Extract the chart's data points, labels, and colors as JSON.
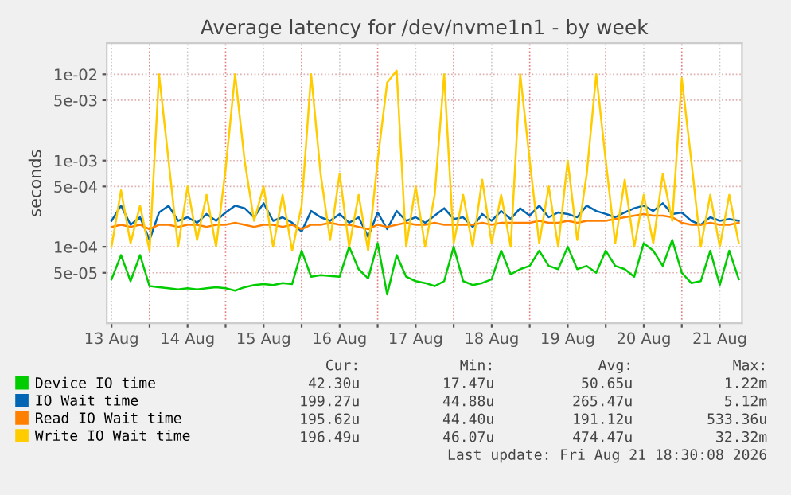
{
  "chart_data": {
    "type": "line",
    "title": "Average latency for /dev/nvme1n1 - by week",
    "ylabel": "seconds",
    "x": [
      "2026-08-13T12:00",
      "2026-08-13T15:00",
      "2026-08-13T18:00",
      "2026-08-13T21:00",
      "2026-08-14T00:00",
      "2026-08-14T03:00",
      "2026-08-14T06:00",
      "2026-08-14T09:00",
      "2026-08-14T12:00",
      "2026-08-14T15:00",
      "2026-08-14T18:00",
      "2026-08-14T21:00",
      "2026-08-15T00:00",
      "2026-08-15T03:00",
      "2026-08-15T06:00",
      "2026-08-15T09:00",
      "2026-08-15T12:00",
      "2026-08-15T15:00",
      "2026-08-15T18:00",
      "2026-08-15T21:00",
      "2026-08-16T00:00",
      "2026-08-16T03:00",
      "2026-08-16T06:00",
      "2026-08-16T09:00",
      "2026-08-16T12:00",
      "2026-08-16T15:00",
      "2026-08-16T18:00",
      "2026-08-16T21:00",
      "2026-08-17T00:00",
      "2026-08-17T03:00",
      "2026-08-17T06:00",
      "2026-08-17T09:00",
      "2026-08-17T12:00",
      "2026-08-17T15:00",
      "2026-08-17T18:00",
      "2026-08-17T21:00",
      "2026-08-18T00:00",
      "2026-08-18T03:00",
      "2026-08-18T06:00",
      "2026-08-18T09:00",
      "2026-08-18T12:00",
      "2026-08-18T15:00",
      "2026-08-18T18:00",
      "2026-08-18T21:00",
      "2026-08-19T00:00",
      "2026-08-19T03:00",
      "2026-08-19T06:00",
      "2026-08-19T09:00",
      "2026-08-19T12:00",
      "2026-08-19T15:00",
      "2026-08-19T18:00",
      "2026-08-19T21:00",
      "2026-08-20T00:00",
      "2026-08-20T03:00",
      "2026-08-20T06:00",
      "2026-08-20T09:00",
      "2026-08-20T12:00",
      "2026-08-20T15:00",
      "2026-08-20T18:00",
      "2026-08-20T21:00",
      "2026-08-21T00:00",
      "2026-08-21T03:00",
      "2026-08-21T06:00",
      "2026-08-21T09:00",
      "2026-08-21T12:00",
      "2026-08-21T15:00",
      "2026-08-21T18:00"
    ],
    "series": [
      {
        "name": "Device IO time",
        "color": "#00cc00",
        "values": [
          4.2e-05,
          8e-05,
          4e-05,
          8e-05,
          3.5e-05,
          3.4e-05,
          3.3e-05,
          3.2e-05,
          3.3e-05,
          3.2e-05,
          3.3e-05,
          3.4e-05,
          3.3e-05,
          3.1e-05,
          3.4e-05,
          3.6e-05,
          3.7e-05,
          3.6e-05,
          3.8e-05,
          3.7e-05,
          9e-05,
          4.5e-05,
          4.7e-05,
          4.6e-05,
          4.5e-05,
          0.0001,
          5.5e-05,
          4.3e-05,
          0.00011,
          2.8e-05,
          8e-05,
          4.5e-05,
          4e-05,
          3.8e-05,
          3.5e-05,
          4e-05,
          0.0001,
          4e-05,
          3.6e-05,
          3.8e-05,
          4.2e-05,
          9e-05,
          4.8e-05,
          5.5e-05,
          6e-05,
          9e-05,
          6e-05,
          5.5e-05,
          0.0001,
          5.5e-05,
          6e-05,
          5e-05,
          9e-05,
          6e-05,
          5.5e-05,
          4.5e-05,
          0.00011,
          9e-05,
          6e-05,
          0.00012,
          5e-05,
          3.8e-05,
          4e-05,
          9e-05,
          3.6e-05,
          9e-05,
          4.2e-05
        ]
      },
      {
        "name": "IO Wait time",
        "color": "#0066b3",
        "values": [
          0.0002,
          0.0003,
          0.00018,
          0.00022,
          0.00012,
          0.00025,
          0.0003,
          0.0002,
          0.00022,
          0.00019,
          0.00024,
          0.0002,
          0.00025,
          0.0003,
          0.00028,
          0.00022,
          0.00032,
          0.0002,
          0.00022,
          0.00019,
          0.00015,
          0.00026,
          0.00022,
          0.0002,
          0.00024,
          0.00019,
          0.00022,
          0.00013,
          0.00025,
          0.00016,
          0.00026,
          0.0002,
          0.00022,
          0.00019,
          0.00023,
          0.00028,
          0.00021,
          0.00022,
          0.00017,
          0.00024,
          0.0002,
          0.00026,
          0.00021,
          0.00028,
          0.00023,
          0.0003,
          0.00022,
          0.00025,
          0.00024,
          0.00022,
          0.0003,
          0.00026,
          0.00024,
          0.00022,
          0.00025,
          0.00028,
          0.0003,
          0.00026,
          0.00032,
          0.00024,
          0.00025,
          0.0002,
          0.00018,
          0.00022,
          0.0002,
          0.00021,
          0.0002
        ]
      },
      {
        "name": "Read IO Wait time",
        "color": "#ff8000",
        "values": [
          0.00017,
          0.00018,
          0.00017,
          0.00018,
          0.00016,
          0.00018,
          0.00018,
          0.00017,
          0.00018,
          0.00018,
          0.00017,
          0.00018,
          0.00018,
          0.00019,
          0.00018,
          0.00017,
          0.00018,
          0.00018,
          0.00017,
          0.00018,
          0.00016,
          0.00018,
          0.00018,
          0.00019,
          0.00018,
          0.00018,
          0.00017,
          0.00016,
          0.00018,
          0.00017,
          0.00018,
          0.00019,
          0.00018,
          0.00018,
          0.00019,
          0.00018,
          0.00018,
          0.00018,
          0.00018,
          0.00019,
          0.00018,
          0.00019,
          0.00019,
          0.00019,
          0.00019,
          0.0002,
          0.00019,
          0.00019,
          0.0002,
          0.00019,
          0.0002,
          0.0002,
          0.0002,
          0.00021,
          0.00022,
          0.00023,
          0.00024,
          0.00023,
          0.00023,
          0.00022,
          0.00019,
          0.00018,
          0.00018,
          0.00019,
          0.00018,
          0.00018,
          0.00019
        ]
      },
      {
        "name": "Write IO Wait time",
        "color": "#ffcc00",
        "values": [
          0.0001,
          0.00045,
          0.00011,
          0.0003,
          9e-05,
          0.01,
          0.001,
          0.0001,
          0.0005,
          0.00012,
          0.0004,
          0.0001,
          0.0008,
          0.01,
          0.001,
          0.0002,
          0.0005,
          0.0001,
          0.0004,
          9e-05,
          0.0003,
          0.01,
          0.0007,
          0.00012,
          0.0007,
          0.0001,
          0.0004,
          9e-05,
          0.001,
          0.008,
          0.011,
          0.0001,
          0.0005,
          0.0001,
          0.0004,
          0.01,
          0.00011,
          0.0004,
          0.0001,
          0.0006,
          0.00011,
          0.0004,
          0.0001,
          0.01,
          0.001,
          0.00011,
          0.0005,
          0.0001,
          0.001,
          0.00012,
          0.0007,
          0.01,
          0.001,
          0.00011,
          0.0006,
          0.0001,
          0.0004,
          0.00011,
          0.0007,
          0.0002,
          0.009,
          0.001,
          0.0001,
          0.0004,
          0.0001,
          0.0004,
          0.00011
        ]
      }
    ],
    "log": "y",
    "ylim": [
      1.3e-05,
      0.023
    ],
    "yticks": [
      {
        "value": 5e-05,
        "label": "5e-05"
      },
      {
        "value": 0.0001,
        "label": "1e-04"
      },
      {
        "value": 0.0005,
        "label": "5e-04"
      },
      {
        "value": 0.001,
        "label": "1e-03"
      },
      {
        "value": 0.005,
        "label": "5e-03"
      },
      {
        "value": 0.01,
        "label": "1e-02"
      }
    ],
    "xlim": [
      "2026-08-13T10:30",
      "2026-08-21T19:00"
    ],
    "xticks": [
      {
        "value": "2026-08-13T12:00",
        "label": "13 Aug"
      },
      {
        "value": "2026-08-14T00:00",
        "label": null
      },
      {
        "value": "2026-08-14T12:00",
        "label": "14 Aug"
      },
      {
        "value": "2026-08-15T00:00",
        "label": null
      },
      {
        "value": "2026-08-15T12:00",
        "label": "15 Aug"
      },
      {
        "value": "2026-08-16T00:00",
        "label": null
      },
      {
        "value": "2026-08-16T12:00",
        "label": "16 Aug"
      },
      {
        "value": "2026-08-17T00:00",
        "label": null
      },
      {
        "value": "2026-08-17T12:00",
        "label": "17 Aug"
      },
      {
        "value": "2026-08-18T00:00",
        "label": null
      },
      {
        "value": "2026-08-18T12:00",
        "label": "18 Aug"
      },
      {
        "value": "2026-08-19T00:00",
        "label": null
      },
      {
        "value": "2026-08-19T12:00",
        "label": "19 Aug"
      },
      {
        "value": "2026-08-20T00:00",
        "label": null
      },
      {
        "value": "2026-08-20T12:00",
        "label": "20 Aug"
      },
      {
        "value": "2026-08-21T00:00",
        "label": null
      },
      {
        "value": "2026-08-21T12:00",
        "label": "21 Aug"
      }
    ],
    "grid": true,
    "legend": "bottom",
    "marker": "none",
    "line_style": "solid",
    "annotations": [
      "Cur:",
      "Min:",
      "Avg:",
      "Max:",
      "42.30u",
      "17.47u",
      "50.65u",
      "1.22m",
      "199.27u",
      "44.88u",
      "265.47u",
      "5.12m",
      "195.62u",
      "44.40u",
      "191.12u",
      "533.36u",
      "196.49u",
      "46.07u",
      "474.47u",
      "32.32m",
      "Last update: Fri Aug 21 18:30:08 2026"
    ]
  }
}
